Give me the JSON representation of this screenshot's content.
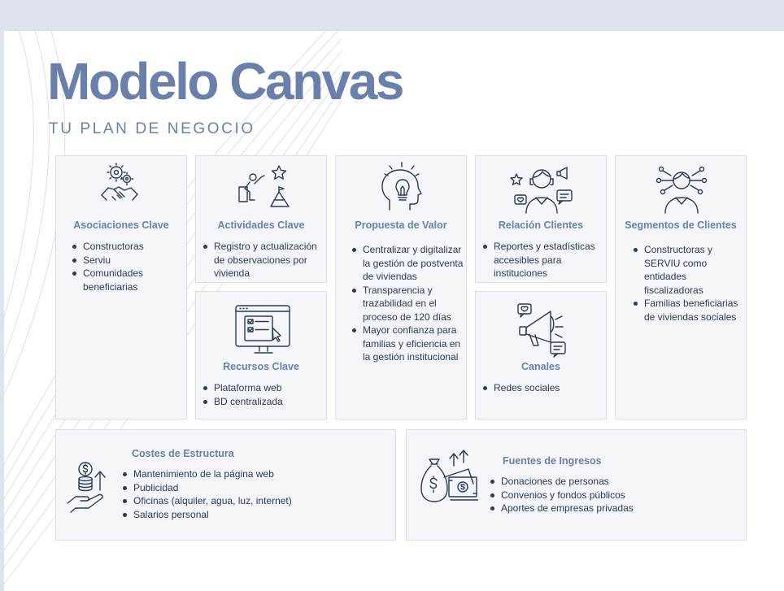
{
  "header": {
    "title": "Modelo Canvas",
    "subtitle": "TU PLAN DE NEGOCIO"
  },
  "asociaciones": {
    "title": "Asociaciones Clave",
    "icon": "handshake-gears-icon",
    "items": [
      "Constructoras",
      "Serviu",
      "Comunidades beneficiarias"
    ]
  },
  "actividades": {
    "title": "Actividades Clave",
    "icon": "climbing-person-star-icon",
    "items": [
      "Registro y actualización de observaciones por vivienda"
    ]
  },
  "recursos": {
    "title": "Recursos Clave",
    "icon": "monitor-checklist-icon",
    "items": [
      "Plataforma web",
      "BD centralizada"
    ]
  },
  "propuesta": {
    "title": "Propuesta de Valor",
    "icon": "head-lightbulb-icon",
    "items": [
      " Centralizar y digitalizar la gestión de postventa de viviendas",
      "Transparencia y trazabilidad en el proceso de 120 días",
      "Mayor confianza para familias y eficiencia en la gestión institucional"
    ]
  },
  "relacion": {
    "title": "Relación Clientes",
    "icon": "person-social-icon",
    "items": [
      "Reportes y estadísticas accesibles para instituciones"
    ]
  },
  "canales": {
    "title": "Canales",
    "icon": "megaphone-icon",
    "items": [
      "Redes sociales"
    ]
  },
  "segmentos": {
    "title": "Segmentos de Clientes",
    "icon": "person-network-icon",
    "items": [
      "Constructoras y SERVIU como entidades fiscalizadoras",
      "Familias beneficiarias de viviendas sociales"
    ]
  },
  "costes": {
    "title": "Costes de Estructura",
    "icon": "hand-coins-icon",
    "items": [
      "Mantenimiento de la página web",
      "Publicidad",
      "Oficinas (alquiler, agua, luz, internet)",
      "Salarios personal"
    ]
  },
  "ingresos": {
    "title": "Fuentes de Ingresos",
    "icon": "money-bag-icon",
    "items": [
      "Donaciones de personas",
      "Convenios y fondos públicos",
      "Aportes de empresas privadas"
    ]
  },
  "colors": {
    "accent": "#6a80aa",
    "text": "#2c3a55",
    "card_bg": "#f4f6f9",
    "card_border": "#d9dfe8",
    "band": "#dfe3ec"
  }
}
